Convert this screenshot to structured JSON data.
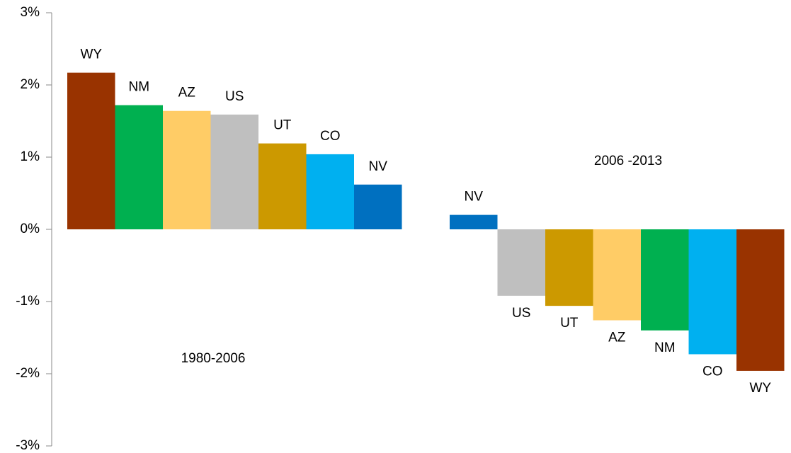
{
  "chart_data": {
    "type": "bar",
    "categories": [
      "WY",
      "NM",
      "AZ",
      "US",
      "UT",
      "CO",
      "NV",
      null,
      "NV",
      "US",
      "UT",
      "AZ",
      "NM",
      "CO",
      "WY"
    ],
    "values": [
      2.17,
      1.72,
      1.64,
      1.59,
      1.19,
      1.04,
      0.62,
      null,
      0.2,
      -0.92,
      -1.06,
      -1.26,
      -1.4,
      -1.73,
      -1.96
    ],
    "colors": [
      "#993300",
      "#00b050",
      "#ffcc66",
      "#bfbfbf",
      "#cc9900",
      "#00b0f0",
      "#0070c0",
      null,
      "#0070c0",
      "#bfbfbf",
      "#cc9900",
      "#ffcc66",
      "#00b050",
      "#00b0f0",
      "#993300"
    ],
    "ylim": [
      -3,
      3
    ],
    "yticks": [
      {
        "value": -3,
        "label": "-3%"
      },
      {
        "value": -2,
        "label": "-2%"
      },
      {
        "value": -1,
        "label": "-1%"
      },
      {
        "value": 0,
        "label": "0%"
      },
      {
        "value": 1,
        "label": "1%"
      },
      {
        "value": 2,
        "label": "2%"
      },
      {
        "value": 3,
        "label": "3%"
      }
    ],
    "annotations": [
      "1980-2006",
      "2006 -2013"
    ]
  }
}
